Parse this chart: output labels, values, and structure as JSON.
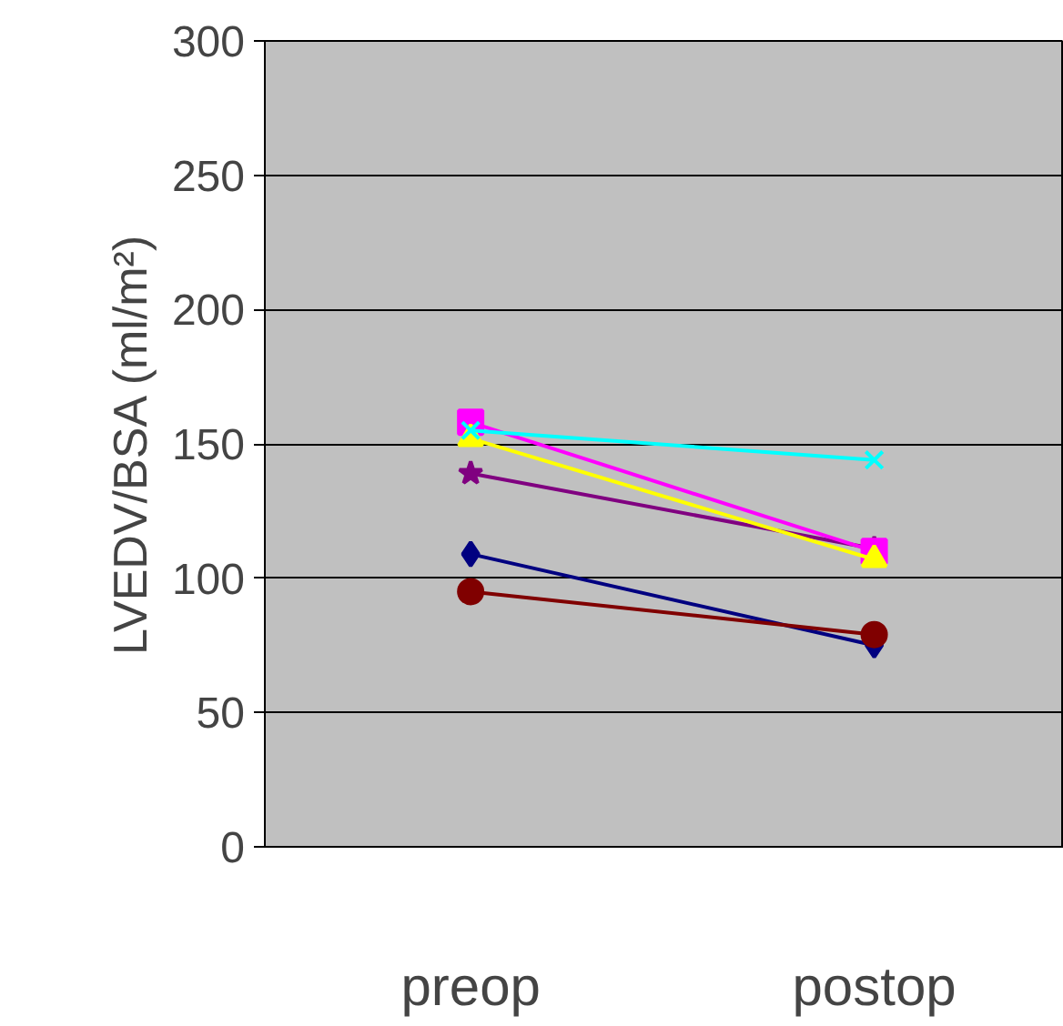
{
  "chart_data": {
    "type": "line",
    "ylabel": "LVEDV/BSA (ml/m²)",
    "categories": [
      "preop",
      "postop"
    ],
    "ylim": [
      0,
      300
    ],
    "yticks": [
      0,
      50,
      100,
      150,
      200,
      250,
      300
    ],
    "grid": "y",
    "series": [
      {
        "color": "#000080",
        "marker": "diamond",
        "values": [
          109,
          75
        ]
      },
      {
        "color": "#800000",
        "marker": "circle",
        "values": [
          95,
          79
        ]
      },
      {
        "color": "#800080",
        "marker": "star",
        "values": [
          139,
          111
        ]
      },
      {
        "color": "#ff00ff",
        "marker": "square",
        "values": [
          158,
          110
        ]
      },
      {
        "color": "#ffff00",
        "marker": "triangle",
        "values": [
          152,
          107
        ]
      },
      {
        "color": "#00ffff",
        "marker": "cross",
        "values": [
          155,
          144
        ]
      }
    ]
  }
}
